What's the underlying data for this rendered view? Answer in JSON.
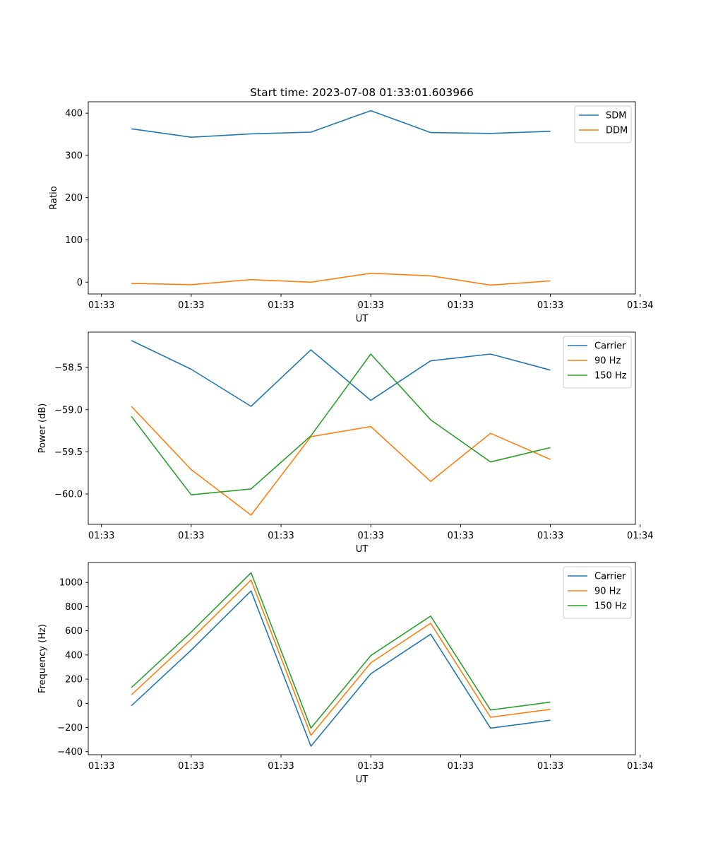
{
  "chart_data": [
    {
      "type": "line",
      "title": "Start time: 2023-07-08 01:33:01.603966",
      "xlabel": "UT",
      "ylabel": "Ratio",
      "xtick_labels": [
        "01:33",
        "01:33",
        "01:33",
        "01:33",
        "01:33",
        "01:33",
        "01:34"
      ],
      "x": [
        1,
        2,
        3,
        4,
        5,
        6,
        7,
        8
      ],
      "xlim": [
        0.28,
        9.42
      ],
      "ylim": [
        -28,
        427
      ],
      "yticks": [
        0,
        100,
        200,
        300,
        400
      ],
      "ytick_labels": [
        "0",
        "100",
        "200",
        "300",
        "400"
      ],
      "legend": "top-right",
      "series": [
        {
          "name": "SDM",
          "color": "#1f77b4",
          "values": [
            363,
            343,
            351,
            355,
            406,
            354,
            352,
            357
          ]
        },
        {
          "name": "DDM",
          "color": "#ff7f0e",
          "values": [
            -3,
            -6,
            6,
            0,
            21,
            15,
            -7,
            3
          ]
        }
      ]
    },
    {
      "type": "line",
      "title": "",
      "xlabel": "UT",
      "ylabel": "Power (dB)",
      "xtick_labels": [
        "01:33",
        "01:33",
        "01:33",
        "01:33",
        "01:33",
        "01:33",
        "01:34"
      ],
      "x": [
        1,
        2,
        3,
        4,
        5,
        6,
        7,
        8
      ],
      "xlim": [
        0.28,
        9.42
      ],
      "ylim": [
        -60.36,
        -58.08
      ],
      "yticks": [
        -58.5,
        -59.0,
        -59.5,
        -60.0
      ],
      "ytick_labels": [
        "−58.5",
        "−59.0",
        "−59.5",
        "−60.0"
      ],
      "legend": "top-right",
      "series": [
        {
          "name": "Carrier",
          "color": "#1f77b4",
          "values": [
            -58.18,
            -58.52,
            -58.96,
            -58.29,
            -58.89,
            -58.42,
            -58.34,
            -58.53
          ]
        },
        {
          "name": "90 Hz",
          "color": "#ff7f0e",
          "values": [
            -58.96,
            -59.71,
            -60.25,
            -59.32,
            -59.2,
            -59.85,
            -59.28,
            -59.59
          ]
        },
        {
          "name": "150 Hz",
          "color": "#2ca02c",
          "values": [
            -59.08,
            -60.01,
            -59.94,
            -59.31,
            -58.34,
            -59.12,
            -59.62,
            -59.45
          ]
        }
      ]
    },
    {
      "type": "line",
      "title": "",
      "xlabel": "UT",
      "ylabel": "Frequency (Hz)",
      "xtick_labels": [
        "01:33",
        "01:33",
        "01:33",
        "01:33",
        "01:33",
        "01:33",
        "01:34"
      ],
      "x": [
        1,
        2,
        3,
        4,
        5,
        6,
        7,
        8
      ],
      "xlim": [
        0.28,
        9.42
      ],
      "ylim": [
        -425,
        1165
      ],
      "yticks": [
        -400,
        -200,
        0,
        200,
        400,
        600,
        800,
        1000
      ],
      "ytick_labels": [
        "−400",
        "−200",
        "0",
        "200",
        "400",
        "600",
        "800",
        "1000"
      ],
      "legend": "top-right",
      "series": [
        {
          "name": "Carrier",
          "color": "#1f77b4",
          "values": [
            -20,
            440,
            930,
            -355,
            245,
            572,
            -205,
            -140
          ]
        },
        {
          "name": "90 Hz",
          "color": "#ff7f0e",
          "values": [
            70,
            530,
            1020,
            -265,
            335,
            662,
            -115,
            -50
          ]
        },
        {
          "name": "150 Hz",
          "color": "#2ca02c",
          "values": [
            130,
            590,
            1080,
            -205,
            395,
            722,
            -55,
            10
          ]
        }
      ]
    }
  ]
}
